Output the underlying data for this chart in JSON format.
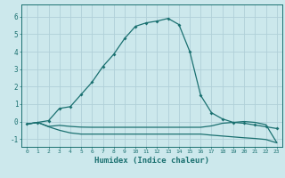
{
  "xlabel": "Humidex (Indice chaleur)",
  "background_color": "#cce8ec",
  "grid_color": "#b0d0d8",
  "line_color": "#1a7070",
  "xlim": [
    -0.5,
    23.5
  ],
  "ylim": [
    -1.45,
    6.7
  ],
  "yticks": [
    -1,
    0,
    1,
    2,
    3,
    4,
    5,
    6
  ],
  "xticks": [
    0,
    1,
    2,
    3,
    4,
    5,
    6,
    7,
    8,
    9,
    10,
    11,
    12,
    13,
    14,
    15,
    16,
    17,
    18,
    19,
    20,
    21,
    22,
    23
  ],
  "line1_x": [
    0,
    1,
    2,
    3,
    4,
    5,
    6,
    7,
    8,
    9,
    10,
    11,
    12,
    13,
    14,
    15,
    16,
    17,
    18,
    19,
    20,
    21,
    22,
    23
  ],
  "line1_y": [
    -0.15,
    -0.05,
    0.05,
    0.75,
    0.85,
    1.55,
    2.25,
    3.15,
    3.85,
    4.75,
    5.45,
    5.65,
    5.75,
    5.9,
    5.55,
    4.0,
    1.5,
    0.5,
    0.15,
    -0.05,
    -0.1,
    -0.2,
    -0.3,
    -0.4
  ],
  "line2_x": [
    0,
    1,
    2,
    3,
    4,
    5,
    6,
    7,
    8,
    9,
    10,
    11,
    12,
    13,
    14,
    15,
    16,
    17,
    18,
    19,
    20,
    21,
    22,
    23
  ],
  "line2_y": [
    -0.15,
    -0.05,
    -0.28,
    -0.22,
    -0.28,
    -0.32,
    -0.33,
    -0.33,
    -0.33,
    -0.33,
    -0.33,
    -0.33,
    -0.33,
    -0.33,
    -0.33,
    -0.33,
    -0.33,
    -0.25,
    -0.1,
    -0.05,
    0.0,
    -0.05,
    -0.18,
    -1.2
  ],
  "line3_x": [
    0,
    1,
    2,
    3,
    4,
    5,
    6,
    7,
    8,
    9,
    10,
    11,
    12,
    13,
    14,
    15,
    16,
    17,
    18,
    19,
    20,
    21,
    22,
    23
  ],
  "line3_y": [
    -0.15,
    -0.05,
    -0.3,
    -0.5,
    -0.65,
    -0.72,
    -0.72,
    -0.72,
    -0.72,
    -0.72,
    -0.72,
    -0.72,
    -0.72,
    -0.72,
    -0.72,
    -0.72,
    -0.72,
    -0.78,
    -0.83,
    -0.88,
    -0.93,
    -0.97,
    -1.03,
    -1.22
  ]
}
